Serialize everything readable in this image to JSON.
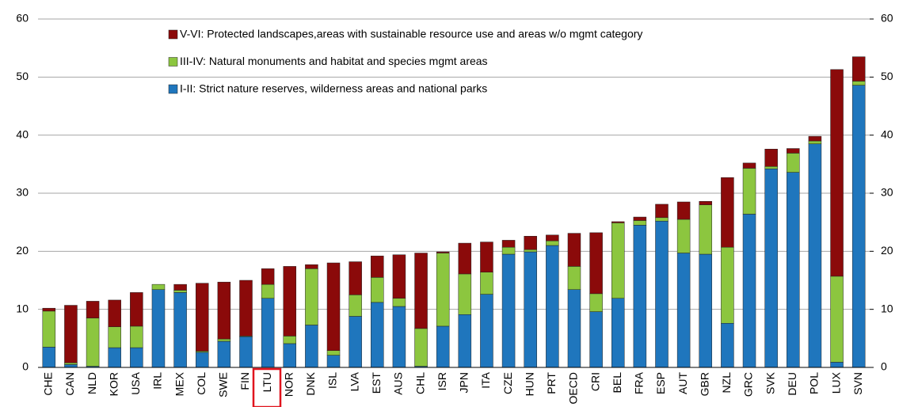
{
  "chart_data": {
    "type": "stacked-bar",
    "categories": [
      "CHE",
      "CAN",
      "NLD",
      "KOR",
      "USA",
      "IRL",
      "MEX",
      "COL",
      "SWE",
      "FIN",
      "LTU",
      "NOR",
      "DNK",
      "ISL",
      "LVA",
      "EST",
      "AUS",
      "CHL",
      "ISR",
      "JPN",
      "ITA",
      "CZE",
      "HUN",
      "PRT",
      "OECD",
      "CRI",
      "BEL",
      "FRA",
      "ESP",
      "AUT",
      "GBR",
      "NZL",
      "GRC",
      "SVK",
      "DEU",
      "POL",
      "LUX",
      "SVN"
    ],
    "series": [
      {
        "name": "I-II: Strict nature reserves, wilderness areas and national parks",
        "color": "#1f76bd",
        "values": [
          3.5,
          0.5,
          0.2,
          3.4,
          3.4,
          13.4,
          12.9,
          2.6,
          4.5,
          5.3,
          11.9,
          4.1,
          7.3,
          2.1,
          8.8,
          11.2,
          10.5,
          0.2,
          7.1,
          9.1,
          12.6,
          19.5,
          19.9,
          21.0,
          13.4,
          9.6,
          11.9,
          24.5,
          25.2,
          19.7,
          19.5,
          7.6,
          26.4,
          34.2,
          33.6,
          38.5,
          0.9,
          48.6
        ]
      },
      {
        "name": "III-IV: Natural monuments and habitat and species mgmt areas",
        "color": "#8cc63f",
        "values": [
          6.2,
          0.3,
          8.3,
          3.6,
          3.7,
          0.9,
          0.4,
          0.2,
          0.4,
          0.1,
          2.4,
          1.3,
          9.7,
          0.8,
          3.7,
          4.3,
          1.4,
          6.5,
          12.6,
          7.0,
          3.8,
          1.2,
          0.4,
          0.8,
          4.0,
          3.1,
          13.0,
          0.8,
          0.6,
          5.8,
          8.5,
          13.1,
          7.9,
          0.4,
          3.3,
          0.5,
          14.8,
          0.7
        ]
      },
      {
        "name": "V-VI: Protected landscapes,areas with sustainable resource use and areas w/o mgmt category",
        "color": "#8b0a0a",
        "values": [
          0.5,
          9.9,
          2.9,
          4.6,
          5.8,
          0,
          1.0,
          11.7,
          9.8,
          9.6,
          2.7,
          12.0,
          0.7,
          15.1,
          5.7,
          3.7,
          7.5,
          13.0,
          0.2,
          5.3,
          5.2,
          1.2,
          2.3,
          1.0,
          5.7,
          10.5,
          0.2,
          0.6,
          2.3,
          3.0,
          0.6,
          12.0,
          0.9,
          3.0,
          0.8,
          0.8,
          35.6,
          4.2
        ]
      }
    ],
    "ylim": [
      0,
      60
    ],
    "yticks": [
      0,
      10,
      20,
      30,
      40,
      50,
      60
    ],
    "y2lim": [
      0,
      60
    ],
    "y2ticks": [
      0,
      10,
      20,
      30,
      40,
      50,
      60
    ],
    "grid": true
  }
}
